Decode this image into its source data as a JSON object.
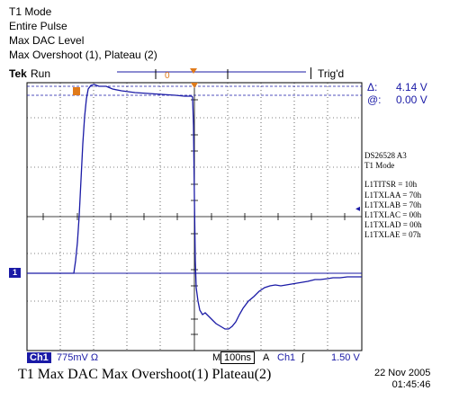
{
  "header": {
    "line1": "T1 Mode",
    "line2": "Entire Pulse",
    "line3": "Max DAC Level",
    "line4": "Max Overshoot (1), Plateau (2)"
  },
  "status": {
    "brand": "Tek",
    "mode": "Run",
    "trigger_state": "Trig'd"
  },
  "cursor_readout": {
    "delta_symbol": "Δ:",
    "delta_value": "4.14 V",
    "at_symbol": "@:",
    "at_value": "0.00 V"
  },
  "side_notes": {
    "device": "DS26528  A3",
    "mode": "T1 Mode",
    "registers": [
      "L1TITSR = 10h",
      "L1TXLAA = 70h",
      "L1TXLAB = 70h",
      "L1TXLAC = 00h",
      "L1TXLAD = 00h",
      "L1TXLAE = 07h"
    ]
  },
  "channel_bar": {
    "channel": "Ch1",
    "scale": "775mV Ω",
    "timebase_prefix": "M",
    "timebase": "100ns",
    "trigger_mode": "A",
    "trigger_channel": "Ch1",
    "trigger_edge": "∫",
    "trigger_level": "1.50 V"
  },
  "ground_marker": "1",
  "caption": "T1 Max DAC Max Overshoot(1) Plateau(2)",
  "timestamp": {
    "date": "22 Nov 2005",
    "time": "01:45:46"
  },
  "colors": {
    "trace": "#1a1aa6",
    "grid": "#000000",
    "cursor": "#1a1aa6",
    "marker_orange": "#e07a1a"
  }
}
